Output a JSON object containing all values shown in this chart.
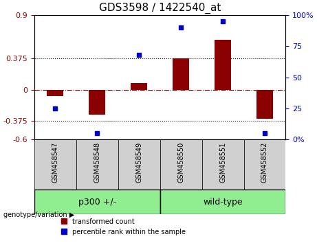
{
  "title": "GDS3598 / 1422540_at",
  "samples": [
    "GSM458547",
    "GSM458548",
    "GSM458549",
    "GSM458550",
    "GSM458551",
    "GSM458552"
  ],
  "red_bars": [
    -0.08,
    -0.3,
    0.08,
    0.38,
    0.6,
    -0.35
  ],
  "blue_dots": [
    25,
    5,
    68,
    90,
    95,
    5
  ],
  "red_color": "#8B0000",
  "blue_color": "#0000CD",
  "ylim_left": [
    -0.6,
    0.9
  ],
  "ylim_right": [
    0,
    100
  ],
  "yticks_left": [
    -0.6,
    -0.375,
    0,
    0.375,
    0.9
  ],
  "yticks_right": [
    0,
    25,
    50,
    75,
    100
  ],
  "ytick_labels_left": [
    "-0.6",
    "-0.375",
    "0",
    "0.375",
    "0.9"
  ],
  "ytick_labels_right": [
    "0%",
    "25",
    "50",
    "75",
    "100%"
  ],
  "hlines_dotted": [
    0.375,
    -0.375
  ],
  "zero_line": 0,
  "groups": [
    {
      "label": "p300 +/-",
      "samples": [
        0,
        1,
        2
      ],
      "color": "#90EE90"
    },
    {
      "label": "wild-type",
      "samples": [
        3,
        4,
        5
      ],
      "color": "#90EE90"
    }
  ],
  "group_bar_colors": [
    "#C0C0C0",
    "#C0C0C0",
    "#C0C0C0",
    "#D0D0D0",
    "#D0D0D0",
    "#D0D0D0"
  ],
  "xlabel_area": "genotype/variation",
  "legend_red": "transformed count",
  "legend_blue": "percentile rank within the sample",
  "title_fontsize": 11,
  "tick_fontsize": 8,
  "label_fontsize": 8
}
